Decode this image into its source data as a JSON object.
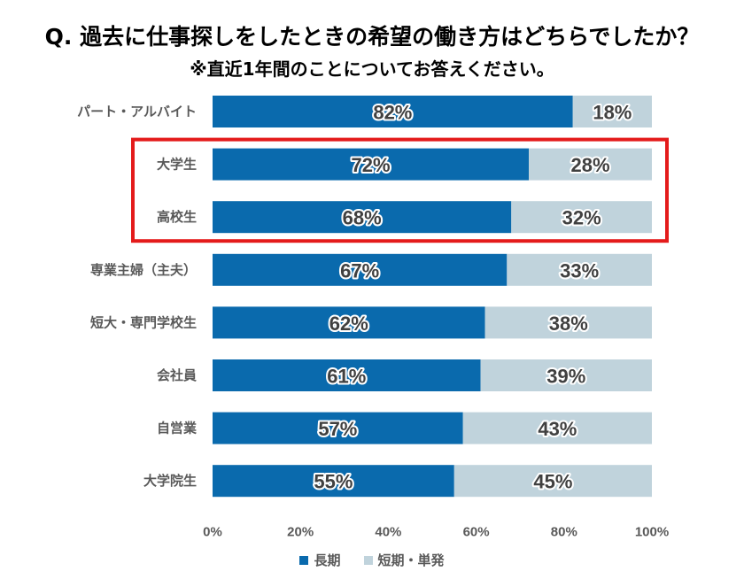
{
  "title": "Q. 過去に仕事探しをしたときの希望の働き方はどちらでしたか？",
  "subtitle": "※直近1年間のことについてお答えください。",
  "colors": {
    "long": "#0a6aad",
    "short": "#c0d3dc",
    "highlight": "#e41b1b",
    "label_text": "#595959",
    "value_text": "#404040"
  },
  "chart_data": {
    "type": "bar",
    "orientation": "horizontal-stacked-100",
    "categories": [
      "パート・アルバイト",
      "大学生",
      "高校生",
      "専業主婦（主夫）",
      "短大・専門学校生",
      "会社員",
      "自営業",
      "大学院生"
    ],
    "series": [
      {
        "name": "長期",
        "values": [
          82,
          72,
          68,
          67,
          62,
          61,
          57,
          55
        ]
      },
      {
        "name": "短期・単発",
        "values": [
          18,
          28,
          32,
          33,
          38,
          39,
          43,
          45
        ]
      }
    ],
    "data_labels_long": [
      "82%",
      "72%",
      "68%",
      "67%",
      "62%",
      "61%",
      "57%",
      "55%"
    ],
    "data_labels_short": [
      "18%",
      "28%",
      "32%",
      "33%",
      "38%",
      "39%",
      "43%",
      "45%"
    ],
    "x_ticks": [
      "0%",
      "20%",
      "40%",
      "60%",
      "80%",
      "100%"
    ],
    "xlim": [
      0,
      100
    ],
    "highlighted_categories": [
      "大学生",
      "高校生"
    ],
    "legend": "bottom",
    "grid": false
  }
}
